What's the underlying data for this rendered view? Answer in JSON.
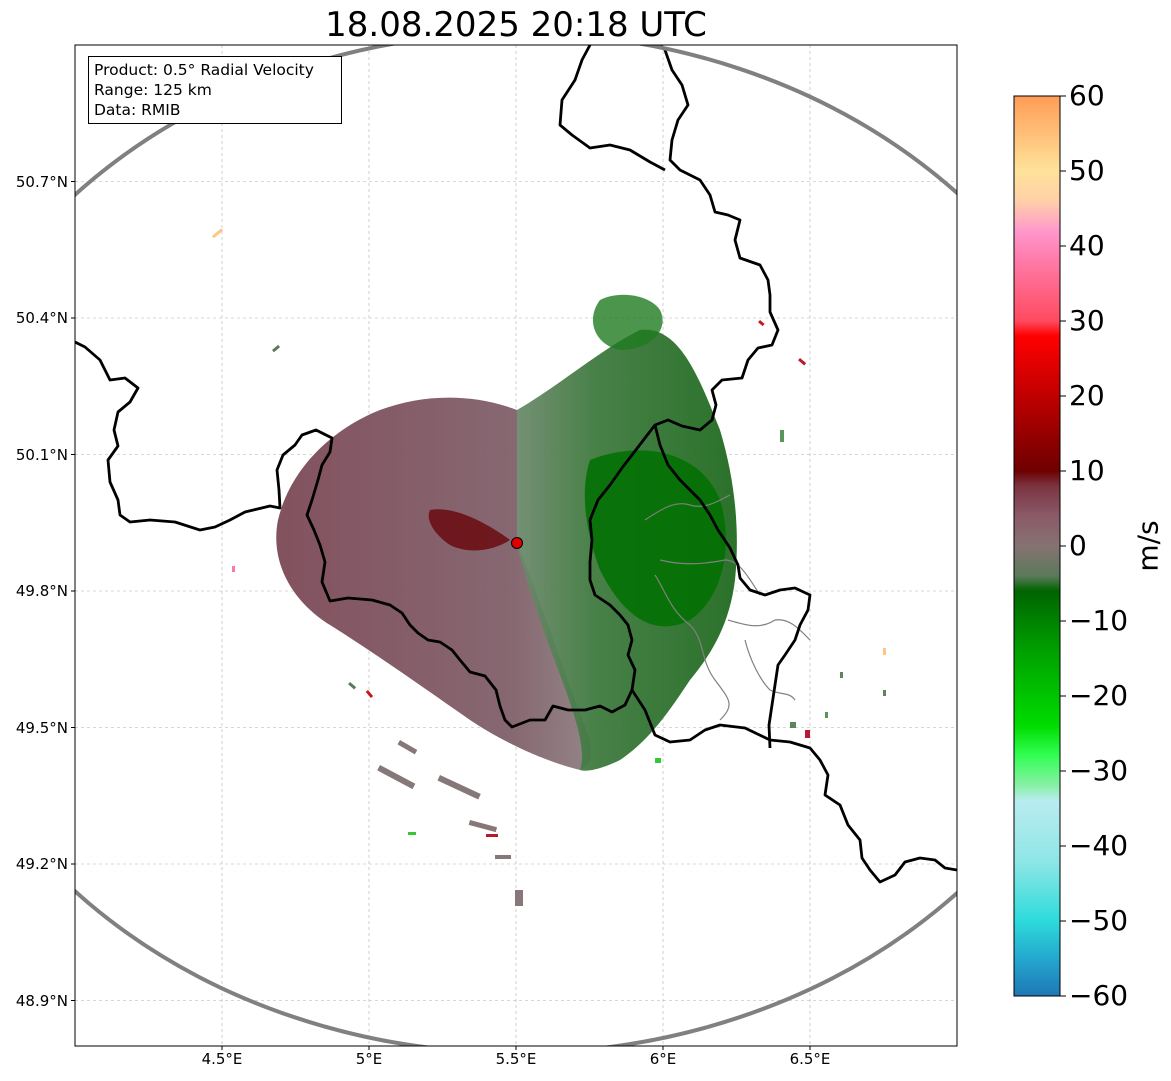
{
  "title": "18.08.2025 20:18 UTC",
  "info_box": {
    "product": "Product: 0.5° Radial Velocity",
    "range": "Range: 125 km",
    "data": "Data: RMIB"
  },
  "map": {
    "lon_range": [
      4.0,
      7.0
    ],
    "lat_range": [
      48.8,
      51.0
    ],
    "radar_site": {
      "lon": 5.505,
      "lat": 49.915
    },
    "range_km": 125,
    "latitude_ticks": [
      {
        "value": 48.9,
        "label": "48.9°N"
      },
      {
        "value": 49.2,
        "label": "49.2°N"
      },
      {
        "value": 49.5,
        "label": "49.5°N"
      },
      {
        "value": 49.8,
        "label": "49.8°N"
      },
      {
        "value": 50.1,
        "label": "50.1°N"
      },
      {
        "value": 50.4,
        "label": "50.4°N"
      },
      {
        "value": 50.7,
        "label": "50.7°N"
      }
    ],
    "longitude_ticks": [
      {
        "value": 4.5,
        "label": "4.5°E"
      },
      {
        "value": 5.0,
        "label": "5°E"
      },
      {
        "value": 5.5,
        "label": "5.5°E"
      },
      {
        "value": 6.0,
        "label": "6°E"
      },
      {
        "value": 6.5,
        "label": "6.5°E"
      }
    ],
    "colors": {
      "range_ring": "#808080",
      "borders": "#000000",
      "sub_borders": "#808080",
      "radar_marker": "#e00000",
      "grid": "#b0b0b0"
    }
  },
  "colorbar": {
    "unit": "m/s",
    "min": -60,
    "max": 60,
    "ticks": [
      {
        "value": 60,
        "label": "60"
      },
      {
        "value": 50,
        "label": "50"
      },
      {
        "value": 40,
        "label": "40"
      },
      {
        "value": 30,
        "label": "30"
      },
      {
        "value": 20,
        "label": "20"
      },
      {
        "value": 10,
        "label": "10"
      },
      {
        "value": 0,
        "label": "0"
      },
      {
        "value": -10,
        "label": "−10"
      },
      {
        "value": -20,
        "label": "−20"
      },
      {
        "value": -30,
        "label": "−30"
      },
      {
        "value": -40,
        "label": "−40"
      },
      {
        "value": -50,
        "label": "−50"
      },
      {
        "value": -60,
        "label": "−60"
      }
    ],
    "stops": [
      {
        "value": -60,
        "color": "#1f77b4"
      },
      {
        "value": -55,
        "color": "#23a8cf"
      },
      {
        "value": -50,
        "color": "#2ddbdb"
      },
      {
        "value": -42,
        "color": "#8fe6e6"
      },
      {
        "value": -34,
        "color": "#b9ecf0"
      },
      {
        "value": -32,
        "color": "#8af0a8"
      },
      {
        "value": -28,
        "color": "#33ff55"
      },
      {
        "value": -24,
        "color": "#00dd00"
      },
      {
        "value": -14,
        "color": "#00a000"
      },
      {
        "value": -6,
        "color": "#006400"
      },
      {
        "value": -4,
        "color": "#5a7a5a"
      },
      {
        "value": 0,
        "color": "#867272"
      },
      {
        "value": 4,
        "color": "#8b5a68"
      },
      {
        "value": 8,
        "color": "#7a3440"
      },
      {
        "value": 10,
        "color": "#6e0000"
      },
      {
        "value": 20,
        "color": "#c00000"
      },
      {
        "value": 28,
        "color": "#ff0000"
      },
      {
        "value": 30,
        "color": "#ff4a60"
      },
      {
        "value": 38,
        "color": "#ff7aa8"
      },
      {
        "value": 42,
        "color": "#ff98cc"
      },
      {
        "value": 46,
        "color": "#ffd0a8"
      },
      {
        "value": 50,
        "color": "#ffe29a"
      },
      {
        "value": 55,
        "color": "#ffbf78"
      },
      {
        "value": 60,
        "color": "#ff9c55"
      }
    ]
  }
}
